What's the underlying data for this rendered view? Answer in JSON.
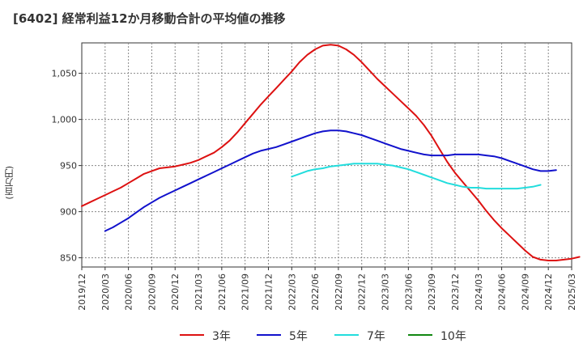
{
  "chart_data": {
    "type": "line",
    "title": "[6402]  経常利益12か月移動合計の平均値の推移",
    "ylabel": "(百万円)",
    "xlabel": "",
    "x_tick_labels": [
      "2019/12",
      "2020/03",
      "2020/06",
      "2020/09",
      "2020/12",
      "2021/03",
      "2021/06",
      "2021/09",
      "2021/12",
      "2022/03",
      "2022/06",
      "2022/09",
      "2022/12",
      "2023/03",
      "2023/06",
      "2023/09",
      "2023/12",
      "2024/03",
      "2024/06",
      "2024/09",
      "2024/12",
      "2025/03"
    ],
    "y_ticks": [
      850,
      900,
      950,
      1000,
      1050
    ],
    "y_tick_labels": [
      "850",
      "900",
      "950",
      "1,000",
      "1,050"
    ],
    "ylim": [
      840,
      1083
    ],
    "grid": true,
    "legend_position": "bottom",
    "series": [
      {
        "name": "3年",
        "color": "#dd1111",
        "start_month": 0,
        "values": [
          906,
          910,
          914,
          918,
          922,
          926,
          931,
          936,
          941,
          944,
          947,
          948,
          949,
          951,
          953,
          956,
          960,
          964,
          970,
          977,
          986,
          996,
          1006,
          1016,
          1025,
          1034,
          1043,
          1052,
          1062,
          1070,
          1076,
          1080,
          1081,
          1080,
          1076,
          1070,
          1062,
          1053,
          1044,
          1036,
          1028,
          1020,
          1012,
          1004,
          994,
          982,
          968,
          954,
          942,
          932,
          922,
          912,
          901,
          891,
          882,
          874,
          866,
          858,
          851,
          848,
          847,
          847,
          848,
          849,
          851
        ]
      },
      {
        "name": "5年",
        "color": "#1111cc",
        "start_month": 3,
        "values": [
          879,
          883,
          888,
          893,
          899,
          905,
          910,
          915,
          919,
          923,
          927,
          931,
          935,
          939,
          943,
          947,
          951,
          955,
          959,
          963,
          966,
          968,
          970,
          973,
          976,
          979,
          982,
          985,
          987,
          988,
          988,
          987,
          985,
          983,
          980,
          977,
          974,
          971,
          968,
          966,
          964,
          962,
          961,
          961,
          961,
          962,
          962,
          962,
          962,
          961,
          960,
          958,
          955,
          952,
          949,
          946,
          944,
          944,
          945
        ]
      },
      {
        "name": "7年",
        "color": "#22dddd",
        "start_month": 27,
        "values": [
          938,
          941,
          944,
          946,
          947,
          949,
          950,
          951,
          952,
          952,
          952,
          952,
          951,
          950,
          948,
          946,
          943,
          940,
          937,
          934,
          931,
          929,
          927,
          926,
          926,
          925,
          925,
          925,
          925,
          925,
          926,
          927,
          929
        ]
      },
      {
        "name": "10年",
        "color": "#118811",
        "start_month": 0,
        "values": []
      }
    ]
  }
}
